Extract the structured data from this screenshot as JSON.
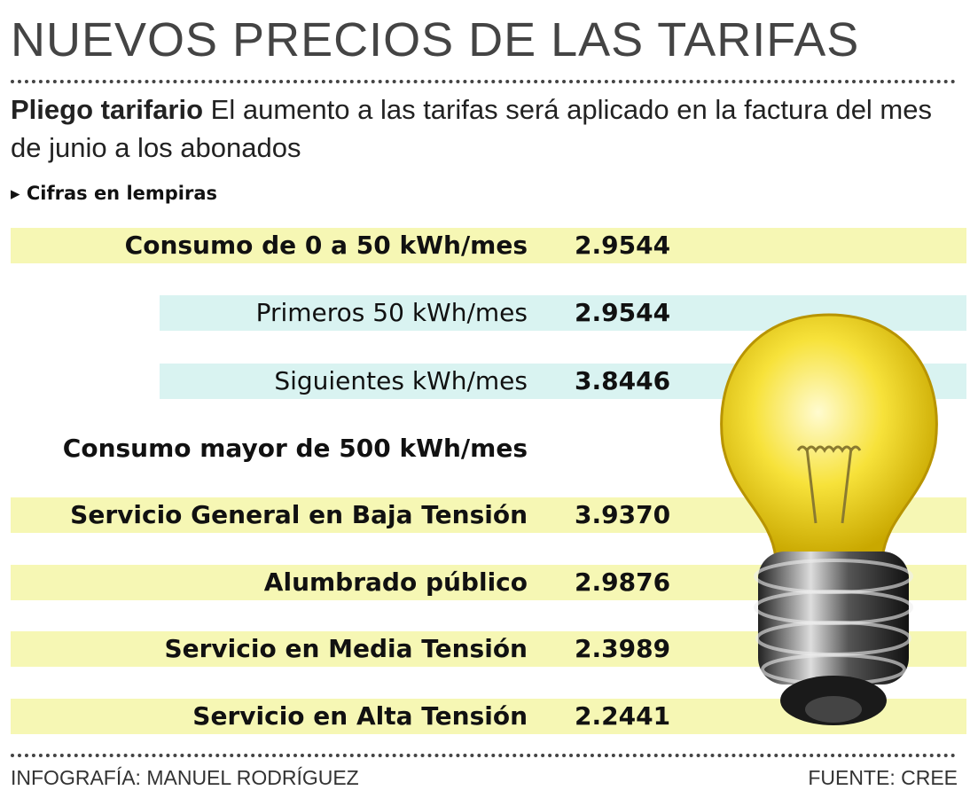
{
  "header": {
    "title": "NUEVOS PRECIOS DE LAS TARIFAS",
    "lead": "Pliego tarifario",
    "subtitle": "El aumento a las tarifas será aplicado en la factura del mes de junio a los abonados",
    "note": "Cifras en lempiras"
  },
  "table": {
    "rows": [
      {
        "label": "Consumo de 0 a 50 kWh/mes",
        "value": "2.9544"
      },
      {
        "label": "Primeros 50 kWh/mes",
        "value": "2.9544"
      },
      {
        "label": "Siguientes kWh/mes",
        "value": "3.8446"
      },
      {
        "label": "Consumo mayor de 500  kWh/mes"
      },
      {
        "label": "Servicio General en Baja Tensión",
        "value": "3.9370"
      },
      {
        "label": "Alumbrado público",
        "value": "2.9876"
      },
      {
        "label": "Servicio en Media Tensión",
        "value": "2.3989"
      },
      {
        "label": "Servicio en Alta Tensión",
        "value": "2.2441"
      }
    ]
  },
  "footer": {
    "credit": "INFOGRAFÍA: MANUEL RODRÍGUEZ",
    "source": "FUENTE: CREE"
  }
}
